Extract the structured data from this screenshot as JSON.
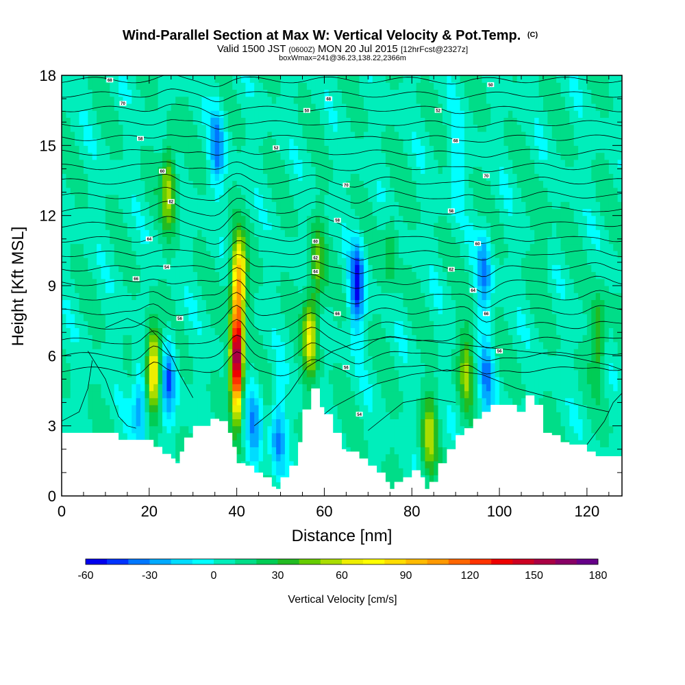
{
  "chart_data": {
    "type": "heatmap",
    "title": {
      "main": "Wind-Parallel Section at Max W: Vertical Velocity & Pot.Temp.",
      "main_tag": "(C)",
      "line2_a": "Valid 1500 JST",
      "line2_b": "(0600Z)",
      "line2_c": "MON 20 Jul 2015",
      "line2_d": "[12hrFcst@2327z]",
      "line3": "boxWmax=241@36.23,138.22,2366m"
    },
    "xlabel": "Distance [nm]",
    "ylabel": "Height [Kft MSL]",
    "xlim": [
      0,
      128
    ],
    "ylim": [
      0,
      18
    ],
    "x_ticks": [
      0,
      20,
      40,
      60,
      80,
      100,
      120
    ],
    "y_ticks": [
      0,
      3,
      6,
      9,
      12,
      15,
      18
    ],
    "colorbar": {
      "label": "Vertical Velocity [cm/s]",
      "min": -60,
      "step": 10,
      "tick_values": [
        -60,
        -30,
        0,
        30,
        60,
        90,
        120,
        150,
        180
      ],
      "colors": [
        "#0000ee",
        "#0033ff",
        "#0077ff",
        "#00aaff",
        "#00dcff",
        "#00ffff",
        "#00eebb",
        "#00dd88",
        "#00cc55",
        "#22bb22",
        "#66cc00",
        "#aadd00",
        "#eeee00",
        "#ffff00",
        "#ffdd00",
        "#ffbb00",
        "#ff9900",
        "#ff6600",
        "#ff3300",
        "#ee0000",
        "#cc0022",
        "#aa0044",
        "#880066",
        "#660088"
      ]
    },
    "terrain_kft": [
      [
        0,
        2.7
      ],
      [
        6,
        2.7
      ],
      [
        10,
        2.7
      ],
      [
        13,
        2.4
      ],
      [
        16,
        2.4
      ],
      [
        19,
        2.4
      ],
      [
        21,
        2.1
      ],
      [
        23,
        1.8
      ],
      [
        25,
        1.6
      ],
      [
        26,
        1.4
      ],
      [
        27,
        1.9
      ],
      [
        28,
        2.5
      ],
      [
        30,
        3.0
      ],
      [
        32,
        3.0
      ],
      [
        34,
        3.3
      ],
      [
        36,
        3.2
      ],
      [
        38,
        2.7
      ],
      [
        39,
        2.1
      ],
      [
        40,
        1.4
      ],
      [
        42,
        1.3
      ],
      [
        44,
        1.0
      ],
      [
        46,
        0.8
      ],
      [
        48,
        0.4
      ],
      [
        49,
        0.3
      ],
      [
        50,
        0.8
      ],
      [
        52,
        1.3
      ],
      [
        54,
        2.3
      ],
      [
        55,
        3.7
      ],
      [
        57,
        4.6
      ],
      [
        58,
        4.6
      ],
      [
        59,
        3.8
      ],
      [
        60,
        3.5
      ],
      [
        62,
        2.7
      ],
      [
        64,
        2.0
      ],
      [
        65,
        1.9
      ],
      [
        66,
        1.9
      ],
      [
        68,
        1.6
      ],
      [
        70,
        1.3
      ],
      [
        72,
        1.0
      ],
      [
        74,
        0.6
      ],
      [
        75,
        0.3
      ],
      [
        76,
        0.6
      ],
      [
        78,
        0.8
      ],
      [
        80,
        1.1
      ],
      [
        82,
        0.8
      ],
      [
        83,
        0.3
      ],
      [
        84,
        0.6
      ],
      [
        86,
        1.4
      ],
      [
        88,
        2.0
      ],
      [
        90,
        2.6
      ],
      [
        92,
        2.9
      ],
      [
        94,
        3.3
      ],
      [
        96,
        3.6
      ],
      [
        98,
        3.9
      ],
      [
        100,
        3.9
      ],
      [
        102,
        3.9
      ],
      [
        104,
        3.6
      ],
      [
        106,
        4.3
      ],
      [
        108,
        3.9
      ],
      [
        110,
        2.7
      ],
      [
        112,
        2.6
      ],
      [
        114,
        2.3
      ],
      [
        116,
        2.2
      ],
      [
        118,
        2.2
      ],
      [
        120,
        1.9
      ],
      [
        122,
        1.7
      ],
      [
        124,
        1.7
      ],
      [
        128,
        1.7
      ]
    ],
    "updraft_cores": [
      {
        "x": 21.0,
        "z": 5.5,
        "w": 75
      },
      {
        "x": 24.5,
        "z": 13.2,
        "w": 50
      },
      {
        "x": 40.0,
        "z": 5.8,
        "w": 170
      },
      {
        "x": 40.4,
        "z": 9.3,
        "w": 85
      },
      {
        "x": 56.8,
        "z": 6.8,
        "w": 60
      },
      {
        "x": 58.5,
        "z": 10.0,
        "w": 35
      },
      {
        "x": 84.0,
        "z": 2.6,
        "w": 45
      },
      {
        "x": 92.5,
        "z": 5.4,
        "w": 40
      },
      {
        "x": 122.5,
        "z": 6.8,
        "w": 35
      },
      {
        "x": 75.0,
        "z": 10.5,
        "w": 20
      },
      {
        "x": 110.0,
        "z": 11.0,
        "w": 15
      }
    ],
    "downdraft_cores": [
      {
        "x": 18.0,
        "z": 4.0,
        "w": -40
      },
      {
        "x": 24.5,
        "z": 5.0,
        "w": -45
      },
      {
        "x": 35.5,
        "z": 15.0,
        "w": -40
      },
      {
        "x": 44.0,
        "z": 3.0,
        "w": -35
      },
      {
        "x": 49.5,
        "z": 2.5,
        "w": -40
      },
      {
        "x": 67.5,
        "z": 9.0,
        "w": -60
      },
      {
        "x": 96.5,
        "z": 9.5,
        "w": -40
      },
      {
        "x": 97.0,
        "z": 5.0,
        "w": -35
      },
      {
        "x": 90.0,
        "z": 14.0,
        "w": -20
      }
    ],
    "contour_labels": [
      "68",
      "70",
      "58",
      "60",
      "62",
      "64",
      "66",
      "56",
      "54",
      "52",
      "50"
    ]
  }
}
